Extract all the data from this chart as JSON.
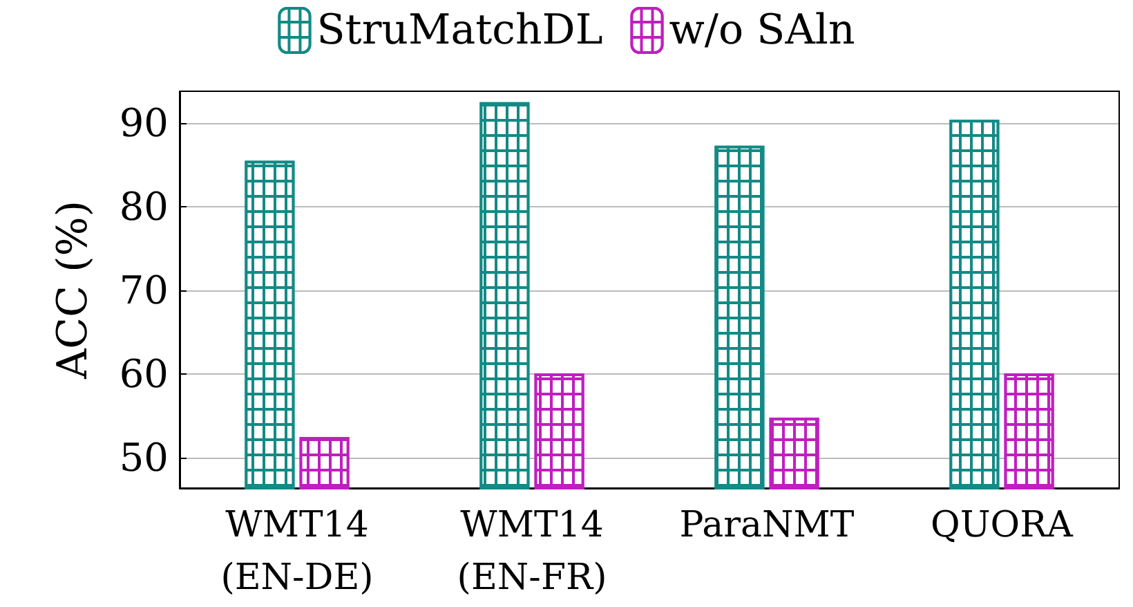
{
  "chart_data": {
    "type": "bar",
    "ylabel": "ACC (%)",
    "categories": [
      "WMT14\n(EN-DE)",
      "WMT14\n(EN-FR)",
      "ParaNMT",
      "QUORA"
    ],
    "series": [
      {
        "name": "StruMatchDL",
        "color": "#138a85",
        "values": [
          85.5,
          92.5,
          87.3,
          90.4
        ]
      },
      {
        "name": "w/o SAln",
        "color": "#bf1fbf",
        "values": [
          52.5,
          60.1,
          54.8,
          60.1
        ]
      }
    ],
    "ylim": [
      46.4,
      93.8
    ],
    "yticks": [
      50,
      60,
      70,
      80,
      90
    ],
    "grid": "y",
    "legend": "top"
  }
}
